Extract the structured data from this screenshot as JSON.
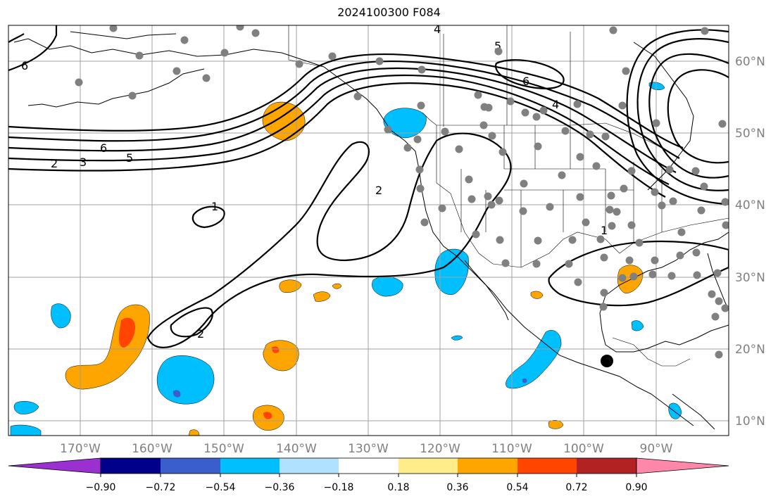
{
  "title": "2024100300 F084",
  "longitude_labels": [
    "170°W",
    "160°W",
    "150°W",
    "140°W",
    "130°W",
    "120°W",
    "110°W",
    "100°W",
    "90°W"
  ],
  "latitude_labels": [
    "60°N",
    "50°N",
    "40°N",
    "30°N",
    "20°N",
    "10°N"
  ],
  "contour_labels": [
    "4",
    "5",
    "6",
    "6",
    "4",
    "6",
    "5",
    "3",
    "2",
    "1",
    "2",
    "2",
    "1"
  ],
  "colorbar": {
    "ticks": [
      "−0.90",
      "−0.72",
      "−0.54",
      "−0.36",
      "−0.18",
      "0.18",
      "0.36",
      "0.54",
      "0.72",
      "0.90"
    ],
    "colors": [
      "#9b30d0",
      "#00008b",
      "#3a5fcd",
      "#00bfff",
      "#b0e2ff",
      "#ffffff",
      "#ffec8b",
      "#ffa500",
      "#ff4500",
      "#b22222",
      "#ff88aa"
    ]
  },
  "fill_colors": {
    "orange": "#ffa500",
    "red": "#ff4500",
    "cyan": "#00bfff",
    "blue": "#3a5fcd"
  },
  "station_color": "#808080",
  "marker_color": "#000000"
}
